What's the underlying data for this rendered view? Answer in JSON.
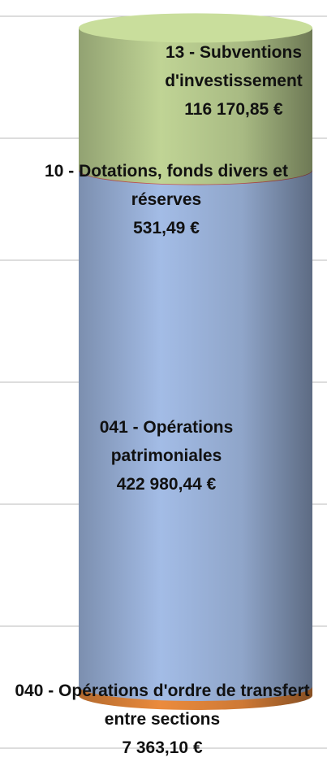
{
  "chart_data": {
    "type": "cylinder_stack",
    "series": [
      {
        "name": "040 - Opérations d'ordre de transfert entre sections",
        "color": "#e0843a",
        "values": [
          7363.1
        ],
        "value_labels": [
          "7 363,10 €"
        ]
      },
      {
        "name": "041 - Opérations patrimoniales",
        "color": "#9bb3db",
        "values": [
          422980.44
        ],
        "value_labels": [
          "422 980,44 €"
        ]
      },
      {
        "name": "10 - Dotations, fonds divers et réserves",
        "color": "#c0504d",
        "values": [
          531.49
        ],
        "value_labels": [
          "531,49 €"
        ]
      },
      {
        "name": "13 - Subventions d'investissement",
        "color": "#b7ca8e",
        "values": [
          116170.85
        ],
        "value_labels": [
          "116 170,85 €"
        ]
      }
    ],
    "ylim": [
      0,
      600000
    ],
    "yticks": [
      0,
      100000,
      200000,
      300000,
      400000,
      500000,
      600000
    ],
    "grid": true
  }
}
